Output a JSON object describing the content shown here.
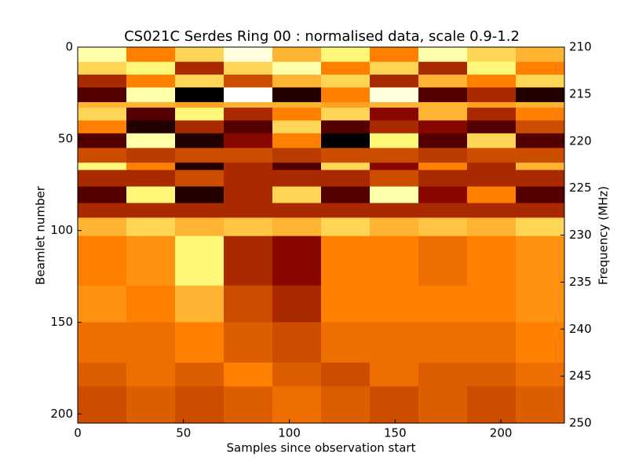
{
  "chart_data": {
    "type": "heatmap",
    "title": "CS021C Serdes Ring 00 : normalised data, scale 0.9-1.2",
    "xlabel": "Samples since observation start",
    "ylabel": "Beamlet number",
    "y2label": "Frequency (MHz)",
    "colormap": "afmhot",
    "clim": [
      0.9,
      1.2
    ],
    "xlim": [
      0,
      230
    ],
    "ylim": [
      205,
      0
    ],
    "y2lim": [
      250,
      210
    ],
    "xticks": [
      0,
      50,
      100,
      150,
      200
    ],
    "yticks": [
      0,
      50,
      100,
      150,
      200
    ],
    "y2ticks": [
      210,
      215,
      220,
      225,
      230,
      235,
      240,
      245,
      250
    ],
    "x_edges": [
      0,
      23,
      46,
      69,
      92,
      115,
      138,
      161,
      184,
      207,
      230
    ],
    "y_edges": [
      0,
      8,
      15,
      22,
      30,
      33,
      40,
      47,
      55,
      63,
      67,
      76,
      85,
      93,
      103,
      130,
      150,
      172,
      185,
      205
    ],
    "values": [
      [
        1.15,
        1.05,
        1.1,
        1.18,
        1.08,
        1.12,
        1.05,
        1.15,
        1.1,
        1.08
      ],
      [
        1.1,
        1.12,
        1.0,
        1.1,
        1.15,
        1.05,
        1.1,
        1.0,
        1.12,
        1.05
      ],
      [
        1.0,
        1.05,
        1.1,
        1.02,
        1.08,
        1.1,
        1.0,
        1.08,
        1.05,
        1.1
      ],
      [
        0.95,
        1.15,
        0.9,
        1.2,
        0.92,
        1.05,
        1.18,
        0.95,
        1.0,
        0.92
      ],
      [
        1.08,
        1.08,
        1.07,
        1.08,
        1.08,
        1.07,
        1.08,
        1.08,
        1.07,
        1.08
      ],
      [
        1.1,
        0.95,
        1.12,
        1.0,
        1.05,
        1.1,
        0.98,
        1.08,
        1.0,
        1.05
      ],
      [
        1.05,
        0.92,
        1.0,
        0.95,
        1.1,
        0.95,
        1.0,
        0.98,
        0.95,
        1.02
      ],
      [
        0.95,
        1.15,
        0.92,
        0.98,
        1.05,
        0.9,
        1.12,
        0.95,
        1.1,
        0.95
      ],
      [
        1.02,
        1.01,
        1.02,
        1.02,
        1.01,
        1.02,
        1.02,
        1.01,
        1.02,
        1.02
      ],
      [
        1.12,
        1.05,
        0.92,
        1.0,
        0.95,
        1.1,
        0.98,
        1.05,
        1.0,
        1.08
      ],
      [
        1.0,
        1.0,
        1.02,
        1.0,
        1.0,
        1.0,
        1.02,
        1.0,
        1.0,
        1.0
      ],
      [
        0.95,
        1.12,
        0.92,
        1.0,
        1.1,
        0.95,
        1.15,
        0.98,
        1.05,
        0.95
      ],
      [
        1.0,
        1.0,
        1.0,
        1.0,
        1.0,
        1.0,
        1.0,
        1.0,
        1.0,
        1.0
      ],
      [
        1.08,
        1.1,
        1.08,
        1.09,
        1.08,
        1.1,
        1.08,
        1.09,
        1.08,
        1.1
      ],
      [
        1.05,
        1.06,
        1.12,
        1.0,
        0.98,
        1.05,
        1.05,
        1.04,
        1.05,
        1.06
      ],
      [
        1.06,
        1.05,
        1.08,
        1.02,
        1.0,
        1.05,
        1.05,
        1.05,
        1.05,
        1.06
      ],
      [
        1.04,
        1.04,
        1.05,
        1.03,
        1.02,
        1.04,
        1.04,
        1.04,
        1.04,
        1.05
      ],
      [
        1.03,
        1.04,
        1.03,
        1.05,
        1.03,
        1.02,
        1.04,
        1.03,
        1.03,
        1.04
      ],
      [
        1.02,
        1.03,
        1.02,
        1.03,
        1.04,
        1.03,
        1.02,
        1.03,
        1.02,
        1.03
      ]
    ]
  }
}
